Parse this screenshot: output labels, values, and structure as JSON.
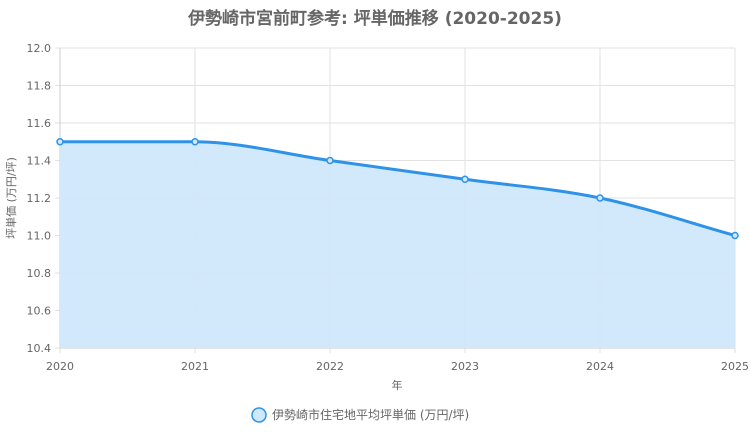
{
  "chart_data": {
    "type": "area",
    "title": "伊勢崎市宮前町参考: 坪単価推移 (2020-2025)",
    "xlabel": "年",
    "ylabel": "坪単価 (万円/坪)",
    "x": [
      "2020",
      "2021",
      "2022",
      "2023",
      "2024",
      "2025"
    ],
    "series": [
      {
        "name": "伊勢崎市住宅地平均坪単価 (万円/坪)",
        "values": [
          11.5,
          11.5,
          11.4,
          11.3,
          11.2,
          11.0
        ]
      }
    ],
    "ylim": [
      10.4,
      12.0
    ],
    "yticks": [
      "12.0",
      "11.8",
      "11.6",
      "11.4",
      "11.2",
      "11.0",
      "10.8",
      "10.6",
      "10.4"
    ],
    "grid": true,
    "legend_position": "bottom",
    "colors": {
      "line": "#2e93e8",
      "fill": "#d0e8fb",
      "grid": "#e2e2e2",
      "text": "#666666",
      "title": "#666666"
    }
  }
}
